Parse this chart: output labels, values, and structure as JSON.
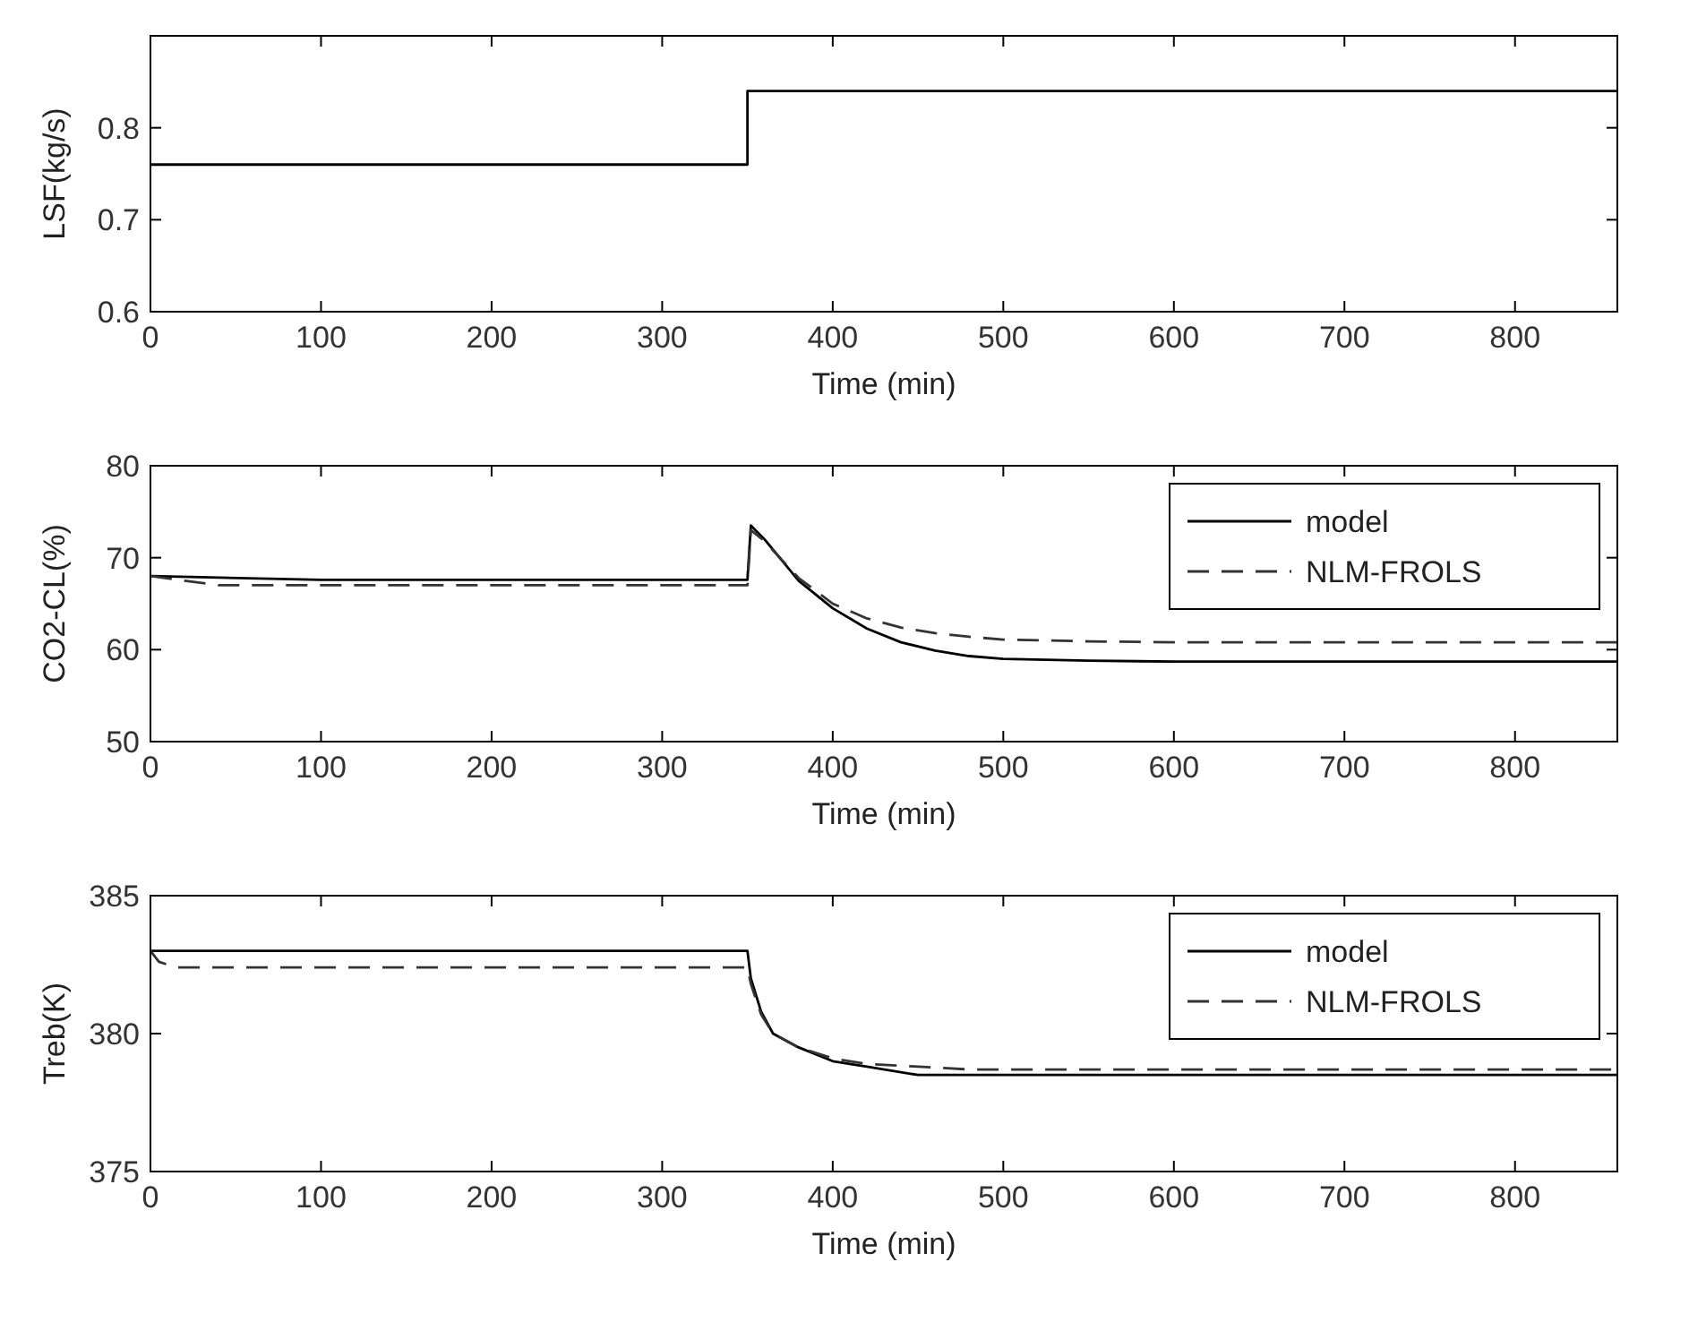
{
  "chart_data": [
    {
      "type": "line",
      "xlabel": "Time (min)",
      "ylabel": "LSF(kg/s)",
      "xlim": [
        0,
        860
      ],
      "xticks": [
        0,
        100,
        200,
        300,
        400,
        500,
        600,
        700,
        800
      ],
      "ylim": [
        0.6,
        0.9
      ],
      "yticks": [
        0.6,
        0.7,
        0.8
      ],
      "legend": false,
      "series": [
        {
          "color": "#000000",
          "line_style": "solid",
          "x": [
            0,
            350,
            350,
            860
          ],
          "values": [
            0.76,
            0.76,
            0.84,
            0.84
          ]
        }
      ]
    },
    {
      "type": "line",
      "xlabel": "Time (min)",
      "ylabel": "CO2-CL(%)",
      "xlim": [
        0,
        860
      ],
      "xticks": [
        0,
        100,
        200,
        300,
        400,
        500,
        600,
        700,
        800
      ],
      "ylim": [
        50,
        80
      ],
      "yticks": [
        50,
        60,
        70,
        80
      ],
      "legend": "top right",
      "series": [
        {
          "name": "model",
          "color": "#000000",
          "line_style": "solid",
          "x": [
            0,
            100,
            350,
            352,
            360,
            380,
            400,
            420,
            440,
            460,
            480,
            500,
            550,
            600,
            700,
            860
          ],
          "values": [
            68,
            67.6,
            67.6,
            73.5,
            72,
            67.5,
            64.5,
            62.3,
            60.8,
            59.9,
            59.3,
            59,
            58.8,
            58.7,
            58.7,
            58.7
          ]
        },
        {
          "name": "NLM-FROLS",
          "color": "#333333",
          "line_style": "dashed",
          "x": [
            0,
            20,
            40,
            100,
            350,
            352,
            360,
            380,
            400,
            420,
            440,
            460,
            480,
            500,
            550,
            600,
            700,
            860
          ],
          "values": [
            68,
            67.5,
            67,
            67,
            67,
            73,
            71.8,
            67.8,
            65,
            63.4,
            62.4,
            61.8,
            61.4,
            61.1,
            60.9,
            60.8,
            60.8,
            60.8
          ]
        }
      ]
    },
    {
      "type": "line",
      "xlabel": "Time (min)",
      "ylabel": "Treb(K)",
      "xlim": [
        0,
        860
      ],
      "xticks": [
        0,
        100,
        200,
        300,
        400,
        500,
        600,
        700,
        800
      ],
      "ylim": [
        375,
        385
      ],
      "yticks": [
        375,
        380,
        385
      ],
      "legend": "top right",
      "series": [
        {
          "name": "model",
          "color": "#000000",
          "line_style": "solid",
          "x": [
            0,
            350,
            352,
            358,
            365,
            380,
            400,
            420,
            450,
            480,
            550,
            860
          ],
          "values": [
            383,
            383,
            382,
            380.8,
            380,
            379.5,
            379,
            378.8,
            378.5,
            378.5,
            378.5,
            378.5
          ]
        },
        {
          "name": "NLM-FROLS",
          "color": "#333333",
          "line_style": "dashed",
          "x": [
            0,
            5,
            15,
            350,
            352,
            358,
            365,
            380,
            400,
            420,
            450,
            480,
            550,
            860
          ],
          "values": [
            383,
            382.6,
            382.4,
            382.4,
            381.8,
            380.7,
            380,
            379.5,
            379.1,
            378.9,
            378.8,
            378.7,
            378.7,
            378.7
          ]
        }
      ]
    }
  ]
}
